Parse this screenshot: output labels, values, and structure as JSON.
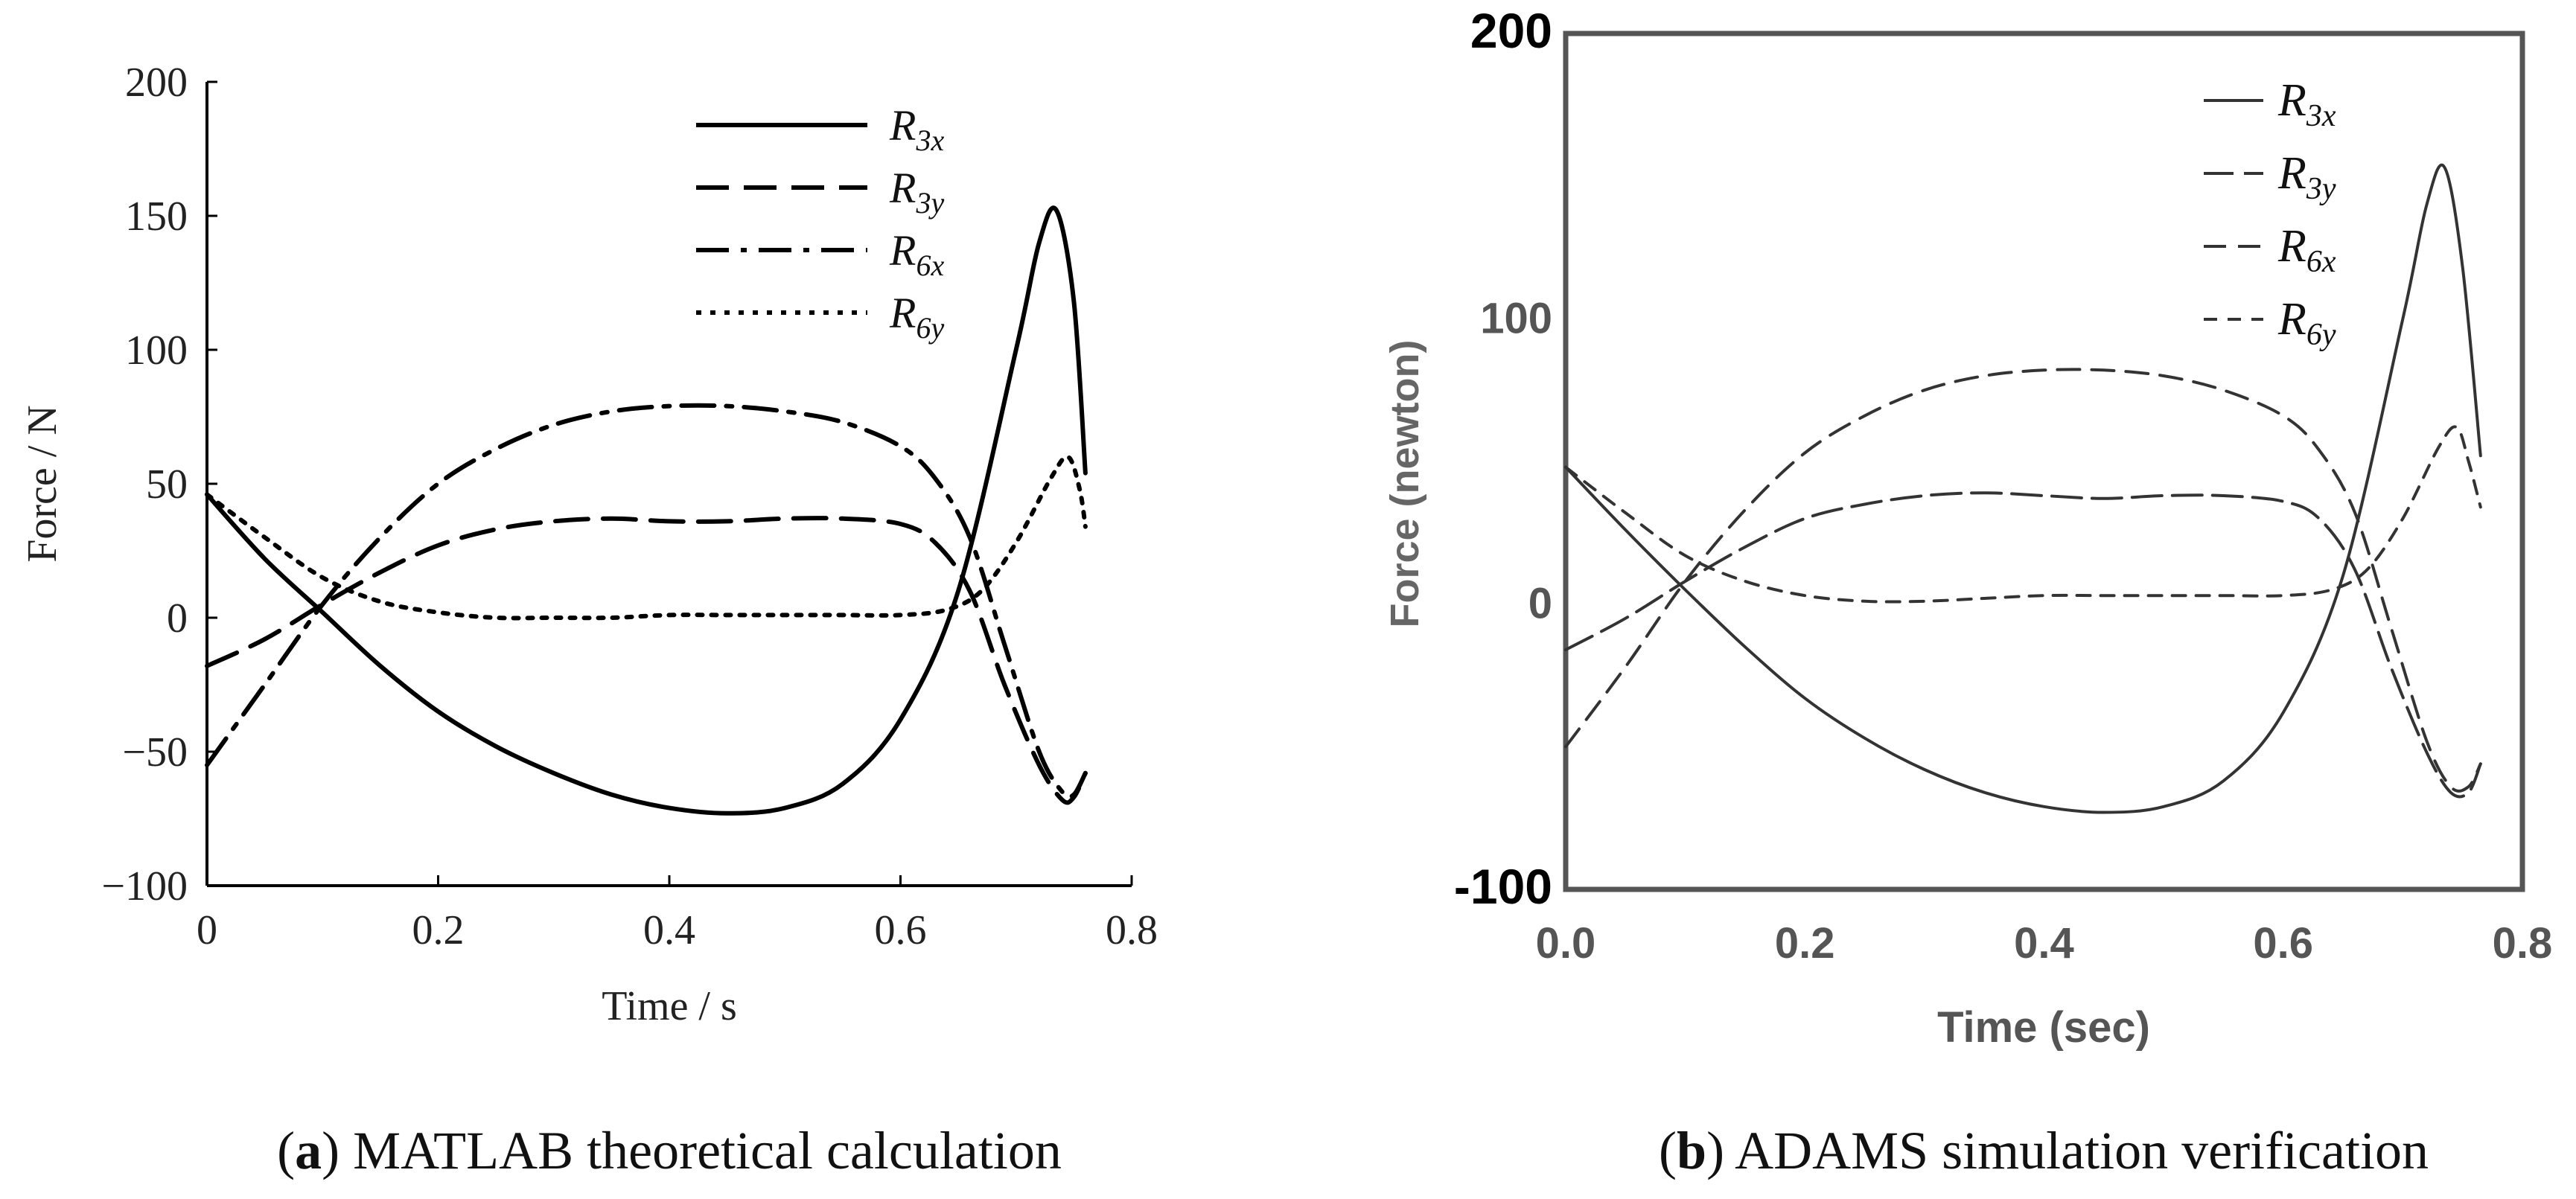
{
  "chart_data": [
    {
      "panel": "a",
      "source": "MATLAB",
      "type": "line",
      "caption_letter": "a",
      "caption_text": "MATLAB theoretical calculation",
      "title": "",
      "xlabel": "Time / s",
      "ylabel": "Force / N",
      "xlim": [
        0,
        0.8
      ],
      "ylim": [
        -100,
        200
      ],
      "xticks": [
        0,
        0.2,
        0.4,
        0.6,
        0.8
      ],
      "xtick_labels": [
        "0",
        "0.2",
        "0.4",
        "0.6",
        "0.8"
      ],
      "yticks": [
        -100,
        -50,
        0,
        50,
        100,
        150,
        200
      ],
      "ytick_labels": [
        "−100",
        "−50",
        "0",
        "50",
        "100",
        "150",
        "200"
      ],
      "grid": false,
      "legend_position": "top-right",
      "series": [
        {
          "name": "R3x",
          "label_main": "R",
          "label_sub": "3x",
          "style": "solid",
          "x": [
            0,
            0.05,
            0.1,
            0.15,
            0.2,
            0.25,
            0.3,
            0.35,
            0.4,
            0.45,
            0.5,
            0.55,
            0.6,
            0.65,
            0.7,
            0.72,
            0.735,
            0.75,
            0.76
          ],
          "y": [
            46,
            22,
            2,
            -18,
            -35,
            -48,
            -58,
            -66,
            -71,
            -73,
            -71,
            -62,
            -38,
            10,
            100,
            140,
            152,
            118,
            54
          ]
        },
        {
          "name": "R3y",
          "label_main": "R",
          "label_sub": "3y",
          "style": "dashed",
          "x": [
            0,
            0.05,
            0.1,
            0.15,
            0.2,
            0.25,
            0.3,
            0.35,
            0.4,
            0.45,
            0.5,
            0.55,
            0.6,
            0.63,
            0.66,
            0.69,
            0.72,
            0.74,
            0.75,
            0.76
          ],
          "y": [
            -18,
            -8,
            5,
            17,
            27,
            33,
            36,
            37,
            36,
            36,
            37,
            37,
            35,
            28,
            10,
            -25,
            -55,
            -68,
            -67,
            -58
          ]
        },
        {
          "name": "R6x",
          "label_main": "R",
          "label_sub": "6x",
          "style": "dashdot",
          "x": [
            0,
            0.05,
            0.1,
            0.15,
            0.2,
            0.25,
            0.3,
            0.35,
            0.4,
            0.45,
            0.5,
            0.55,
            0.6,
            0.63,
            0.66,
            0.69,
            0.72,
            0.74,
            0.75,
            0.76
          ],
          "y": [
            -55,
            -25,
            5,
            30,
            50,
            63,
            72,
            77,
            79,
            79,
            77,
            73,
            64,
            52,
            30,
            -10,
            -50,
            -65,
            -66,
            -58
          ]
        },
        {
          "name": "R6y",
          "label_main": "R",
          "label_sub": "6y",
          "style": "dotted",
          "x": [
            0,
            0.05,
            0.1,
            0.15,
            0.2,
            0.25,
            0.3,
            0.35,
            0.4,
            0.45,
            0.5,
            0.55,
            0.6,
            0.64,
            0.67,
            0.7,
            0.73,
            0.745,
            0.755,
            0.76
          ],
          "y": [
            46,
            30,
            15,
            6,
            2,
            0,
            0,
            0,
            1,
            1,
            1,
            1,
            1,
            3,
            10,
            28,
            52,
            60,
            48,
            34
          ]
        }
      ]
    },
    {
      "panel": "b",
      "source": "ADAMS",
      "type": "line",
      "caption_letter": "b",
      "caption_text": "ADAMS simulation verification",
      "title": "",
      "xlabel": "Time (sec)",
      "ylabel": "Force (newton)",
      "xlim": [
        0,
        0.8
      ],
      "ylim": [
        -100,
        200
      ],
      "xticks": [
        0,
        0.2,
        0.4,
        0.6,
        0.8
      ],
      "xtick_labels": [
        "0.0",
        "0.2",
        "0.4",
        "0.6",
        "0.8"
      ],
      "yticks": [
        -100,
        0,
        100,
        200
      ],
      "ytick_labels": [
        "-100",
        "0",
        "100",
        "200"
      ],
      "grid": false,
      "legend_position": "top-right",
      "series": [
        {
          "name": "R3x",
          "label_main": "R",
          "label_sub": "3x",
          "style": "solid",
          "x": [
            0,
            0.05,
            0.1,
            0.15,
            0.2,
            0.25,
            0.3,
            0.35,
            0.4,
            0.45,
            0.5,
            0.55,
            0.6,
            0.65,
            0.7,
            0.72,
            0.735,
            0.75,
            0.765
          ],
          "y": [
            48,
            26,
            5,
            -15,
            -33,
            -47,
            -58,
            -66,
            -71,
            -73,
            -71,
            -62,
            -38,
            10,
            100,
            140,
            153,
            118,
            52
          ]
        },
        {
          "name": "R3y",
          "label_main": "R",
          "label_sub": "3y",
          "style": "longdash",
          "x": [
            0,
            0.05,
            0.1,
            0.15,
            0.2,
            0.25,
            0.3,
            0.35,
            0.4,
            0.45,
            0.5,
            0.55,
            0.6,
            0.63,
            0.66,
            0.69,
            0.72,
            0.74,
            0.755,
            0.765
          ],
          "y": [
            -16,
            -5,
            8,
            20,
            30,
            35,
            38,
            39,
            38,
            37,
            38,
            38,
            36,
            30,
            12,
            -22,
            -52,
            -66,
            -66,
            -56
          ]
        },
        {
          "name": "R6x",
          "label_main": "R",
          "label_sub": "6x",
          "style": "dashed",
          "x": [
            0,
            0.05,
            0.1,
            0.15,
            0.2,
            0.25,
            0.3,
            0.35,
            0.4,
            0.45,
            0.5,
            0.55,
            0.6,
            0.63,
            0.66,
            0.69,
            0.72,
            0.74,
            0.755,
            0.765
          ],
          "y": [
            -50,
            -22,
            8,
            33,
            53,
            66,
            75,
            80,
            82,
            82,
            80,
            75,
            66,
            54,
            32,
            -8,
            -48,
            -64,
            -64,
            -56
          ]
        },
        {
          "name": "R6y",
          "label_main": "R",
          "label_sub": "6y",
          "style": "shortdash",
          "x": [
            0,
            0.05,
            0.1,
            0.15,
            0.2,
            0.25,
            0.3,
            0.35,
            0.4,
            0.45,
            0.5,
            0.55,
            0.6,
            0.64,
            0.67,
            0.7,
            0.73,
            0.745,
            0.755,
            0.765
          ],
          "y": [
            48,
            32,
            17,
            8,
            3,
            1,
            1,
            2,
            3,
            3,
            3,
            3,
            3,
            5,
            12,
            30,
            55,
            62,
            50,
            34
          ]
        }
      ]
    }
  ]
}
